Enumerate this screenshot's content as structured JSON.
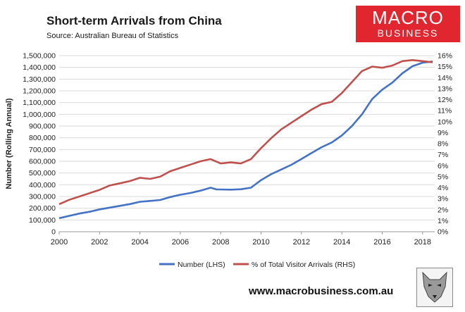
{
  "header": {
    "title": "Short-term Arrivals from China",
    "source": "Source: Australian Bureau of Statistics"
  },
  "logo": {
    "line1": "MACRO",
    "line2": "BUSINESS",
    "color": "#e2262f"
  },
  "footer": {
    "website": "www.macrobusiness.com.au"
  },
  "chart_data": {
    "type": "line",
    "xlabel": "",
    "ylabel": "Number (Rolling Annual)",
    "y2label": "",
    "xlim": [
      2000,
      2018.6
    ],
    "xticks": [
      "2000",
      "2002",
      "2004",
      "2006",
      "2008",
      "2010",
      "2012",
      "2014",
      "2016",
      "2018"
    ],
    "ylim": [
      0,
      1500000
    ],
    "yticks": [
      "0",
      "100,000",
      "200,000",
      "300,000",
      "400,000",
      "500,000",
      "600,000",
      "700,000",
      "800,000",
      "900,000",
      "1,000,000",
      "1,100,000",
      "1,200,000",
      "1,300,000",
      "1,400,000",
      "1,500,000"
    ],
    "y2lim": [
      0,
      16
    ],
    "y2ticks": [
      "0%",
      "1%",
      "2%",
      "3%",
      "4%",
      "5%",
      "6%",
      "7%",
      "8%",
      "9%",
      "10%",
      "11%",
      "12%",
      "13%",
      "14%",
      "15%",
      "16%"
    ],
    "grid": true,
    "legend_position": "bottom",
    "series": [
      {
        "name": "Number (LHS)",
        "axis": "left",
        "color": "#4472c4",
        "points": [
          [
            2000,
            115000
          ],
          [
            2000.5,
            135000
          ],
          [
            2001,
            155000
          ],
          [
            2001.5,
            170000
          ],
          [
            2002,
            190000
          ],
          [
            2002.5,
            205000
          ],
          [
            2003,
            220000
          ],
          [
            2003.5,
            235000
          ],
          [
            2004,
            255000
          ],
          [
            2004.5,
            262000
          ],
          [
            2005,
            270000
          ],
          [
            2005.5,
            295000
          ],
          [
            2006,
            315000
          ],
          [
            2006.5,
            330000
          ],
          [
            2007,
            350000
          ],
          [
            2007.5,
            375000
          ],
          [
            2007.8,
            360000
          ],
          [
            2008,
            360000
          ],
          [
            2008.5,
            358000
          ],
          [
            2009,
            362000
          ],
          [
            2009.5,
            375000
          ],
          [
            2010,
            440000
          ],
          [
            2010.5,
            490000
          ],
          [
            2011,
            530000
          ],
          [
            2011.5,
            570000
          ],
          [
            2012,
            620000
          ],
          [
            2012.5,
            670000
          ],
          [
            2013,
            720000
          ],
          [
            2013.5,
            760000
          ],
          [
            2014,
            820000
          ],
          [
            2014.5,
            900000
          ],
          [
            2015,
            1000000
          ],
          [
            2015.5,
            1130000
          ],
          [
            2016,
            1210000
          ],
          [
            2016.5,
            1270000
          ],
          [
            2017,
            1350000
          ],
          [
            2017.5,
            1410000
          ],
          [
            2018,
            1440000
          ],
          [
            2018.5,
            1450000
          ]
        ]
      },
      {
        "name": "% of Total Visitor Arrivals (RHS)",
        "axis": "right",
        "color": "#c0504d",
        "points": [
          [
            2000,
            2.5
          ],
          [
            2000.5,
            2.9
          ],
          [
            2001,
            3.2
          ],
          [
            2001.5,
            3.5
          ],
          [
            2002,
            3.8
          ],
          [
            2002.5,
            4.2
          ],
          [
            2003,
            4.4
          ],
          [
            2003.5,
            4.6
          ],
          [
            2004,
            4.9
          ],
          [
            2004.5,
            4.8
          ],
          [
            2005,
            5.0
          ],
          [
            2005.5,
            5.5
          ],
          [
            2006,
            5.8
          ],
          [
            2006.5,
            6.1
          ],
          [
            2007,
            6.4
          ],
          [
            2007.5,
            6.6
          ],
          [
            2008,
            6.2
          ],
          [
            2008.5,
            6.3
          ],
          [
            2009,
            6.2
          ],
          [
            2009.5,
            6.6
          ],
          [
            2010,
            7.6
          ],
          [
            2010.5,
            8.5
          ],
          [
            2011,
            9.3
          ],
          [
            2011.5,
            9.9
          ],
          [
            2012,
            10.5
          ],
          [
            2012.5,
            11.1
          ],
          [
            2013,
            11.6
          ],
          [
            2013.5,
            11.8
          ],
          [
            2014,
            12.6
          ],
          [
            2014.5,
            13.6
          ],
          [
            2015,
            14.6
          ],
          [
            2015.5,
            15.0
          ],
          [
            2016,
            14.9
          ],
          [
            2016.5,
            15.1
          ],
          [
            2017,
            15.5
          ],
          [
            2017.5,
            15.6
          ],
          [
            2018,
            15.5
          ],
          [
            2018.5,
            15.4
          ]
        ]
      }
    ]
  }
}
